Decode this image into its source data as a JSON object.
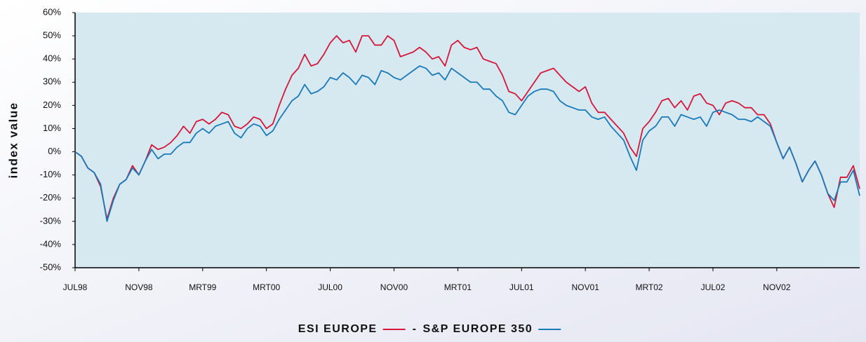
{
  "chart_data": {
    "type": "line",
    "y_label": "index value",
    "legend_separator": "-",
    "x": [
      0,
      0.1,
      0.2,
      0.3,
      0.4,
      0.5,
      0.6,
      0.7,
      0.8,
      0.9,
      1,
      1.1,
      1.2,
      1.3,
      1.4,
      1.5,
      1.6,
      1.7,
      1.8,
      1.9,
      2,
      2.1,
      2.2,
      2.3,
      2.4,
      2.5,
      2.6,
      2.7,
      2.8,
      2.9,
      3,
      3.1,
      3.2,
      3.3,
      3.4,
      3.5,
      3.6,
      3.7,
      3.8,
      3.9,
      4,
      4.1,
      4.2,
      4.3,
      4.4,
      4.5,
      4.6,
      4.7,
      4.8,
      4.9,
      5,
      5.1,
      5.2,
      5.3,
      5.4,
      5.5,
      5.6,
      5.7,
      5.8,
      5.9,
      6,
      6.1,
      6.2,
      6.3,
      6.4,
      6.5,
      6.6,
      6.7,
      6.8,
      6.9,
      7,
      7.1,
      7.2,
      7.3,
      7.4,
      7.5,
      7.6,
      7.7,
      7.8,
      7.9,
      8,
      8.1,
      8.2,
      8.3,
      8.4,
      8.5,
      8.6,
      8.7,
      8.8,
      8.9,
      9,
      9.1,
      9.2,
      9.3,
      9.4,
      9.5,
      9.6,
      9.7,
      9.8,
      9.9,
      10,
      10.1,
      10.2,
      10.3,
      10.4,
      10.5,
      10.6,
      10.7,
      10.8,
      10.9,
      11,
      11.1,
      11.2,
      11.3,
      11.4,
      11.5,
      11.6,
      11.7,
      11.8,
      11.9,
      12,
      12.1,
      12.2,
      12.3
    ],
    "series": [
      {
        "name": "ESI EUROPE",
        "color": "#d4173a",
        "values": [
          0,
          -2,
          -7,
          -9,
          -15,
          -29,
          -20,
          -14,
          -12,
          -6,
          -10,
          -4,
          3,
          1,
          2,
          4,
          7,
          11,
          8,
          13,
          14,
          12,
          14,
          17,
          16,
          11,
          10,
          12,
          15,
          14,
          10,
          12,
          20,
          27,
          33,
          36,
          42,
          37,
          38,
          42,
          47,
          50,
          47,
          48,
          43,
          50,
          50,
          46,
          46,
          50,
          48,
          41,
          42,
          43,
          45,
          43,
          40,
          41,
          37,
          46,
          48,
          45,
          44,
          45,
          40,
          39,
          38,
          33,
          26,
          25,
          22,
          26,
          30,
          34,
          35,
          36,
          33,
          30,
          28,
          26,
          28,
          21,
          17,
          17,
          14,
          11,
          8,
          2,
          -2,
          10,
          13,
          17,
          22,
          23,
          19,
          22,
          18,
          24,
          25,
          21,
          20,
          16,
          21,
          22,
          21,
          19,
          19,
          16,
          16,
          12,
          4,
          -3,
          2,
          -5,
          -13,
          -8,
          -4,
          -10,
          -18,
          -24,
          -11,
          -11,
          -6,
          -16
        ]
      },
      {
        "name": "S&P EUROPE 350",
        "color": "#1a7ab8",
        "values": [
          0,
          -2,
          -7,
          -9,
          -14,
          -30,
          -21,
          -14,
          -12,
          -7,
          -10,
          -4,
          1,
          -3,
          -1,
          -1,
          2,
          4,
          4,
          8,
          10,
          8,
          11,
          12,
          13,
          8,
          6,
          10,
          12,
          11,
          7,
          9,
          14,
          18,
          22,
          24,
          29,
          25,
          26,
          28,
          32,
          31,
          34,
          32,
          29,
          33,
          32,
          29,
          35,
          34,
          32,
          31,
          33,
          35,
          37,
          36,
          33,
          34,
          31,
          36,
          34,
          32,
          30,
          30,
          27,
          27,
          24,
          22,
          17,
          16,
          20,
          24,
          26,
          27,
          27,
          26,
          22,
          20,
          19,
          18,
          18,
          15,
          14,
          15,
          11,
          8,
          5,
          -2,
          -8,
          5,
          9,
          11,
          15,
          15,
          11,
          16,
          15,
          14,
          15,
          11,
          17,
          18,
          17,
          16,
          14,
          14,
          13,
          15,
          13,
          11,
          4,
          -3,
          2,
          -5,
          -13,
          -8,
          -4,
          -10,
          -18,
          -21,
          -13,
          -13,
          -8,
          -19
        ]
      }
    ],
    "xlim": [
      0,
      12.3
    ],
    "xticks": [
      {
        "value": 0,
        "label": "JUL98"
      },
      {
        "value": 1,
        "label": "NOV98"
      },
      {
        "value": 2,
        "label": "MRT99"
      },
      {
        "value": 3,
        "label": "MRT00"
      },
      {
        "value": 4,
        "label": "JUL00"
      },
      {
        "value": 5,
        "label": "NOV00"
      },
      {
        "value": 6,
        "label": "MRT01"
      },
      {
        "value": 7,
        "label": "JUL01"
      },
      {
        "value": 8,
        "label": "NOV01"
      },
      {
        "value": 9,
        "label": "MRT02"
      },
      {
        "value": 10,
        "label": "JUL02"
      },
      {
        "value": 11,
        "label": "NOV02"
      }
    ],
    "ylim": [
      -50,
      60
    ],
    "yticks": [
      {
        "value": -50,
        "label": "-50%"
      },
      {
        "value": -40,
        "label": "-40%"
      },
      {
        "value": -30,
        "label": "-30%"
      },
      {
        "value": -20,
        "label": "-20%"
      },
      {
        "value": -10,
        "label": "-10%"
      },
      {
        "value": 0,
        "label": "0%"
      },
      {
        "value": 10,
        "label": "10%"
      },
      {
        "value": 20,
        "label": "20%"
      },
      {
        "value": 30,
        "label": "30%"
      },
      {
        "value": 40,
        "label": "40%"
      },
      {
        "value": 50,
        "label": "50%"
      },
      {
        "value": 60,
        "label": "60%"
      }
    ],
    "grid": false,
    "legend": "bottom"
  }
}
